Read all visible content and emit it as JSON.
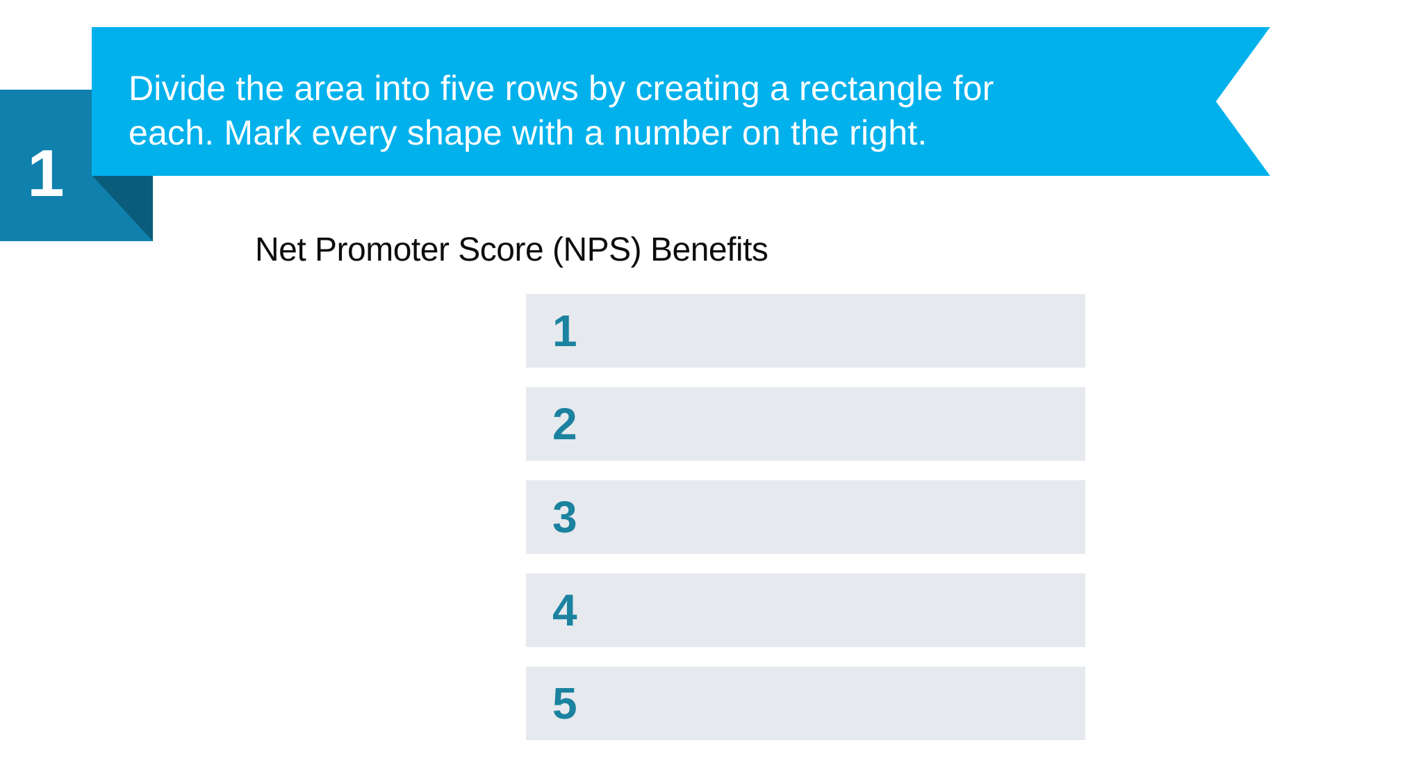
{
  "colors": {
    "banner_blue": "#00b1ec",
    "badge_blue": "#1080ad",
    "badge_shadow": "#0b5c7b",
    "row_bg": "#e6e9ed",
    "row_number_teal": "#1b82a0",
    "title_black": "#0d0d0d",
    "text_white": "#ffffff"
  },
  "step_badge": {
    "number": "1"
  },
  "instruction_banner": {
    "line1": "Divide the area into five rows by creating a rectangle for",
    "line2": "each. Mark every shape with a number on the right."
  },
  "content": {
    "title": "Net Promoter Score (NPS) Benefits",
    "rows": [
      {
        "number": "1"
      },
      {
        "number": "2"
      },
      {
        "number": "3"
      },
      {
        "number": "4"
      },
      {
        "number": "5"
      }
    ]
  }
}
